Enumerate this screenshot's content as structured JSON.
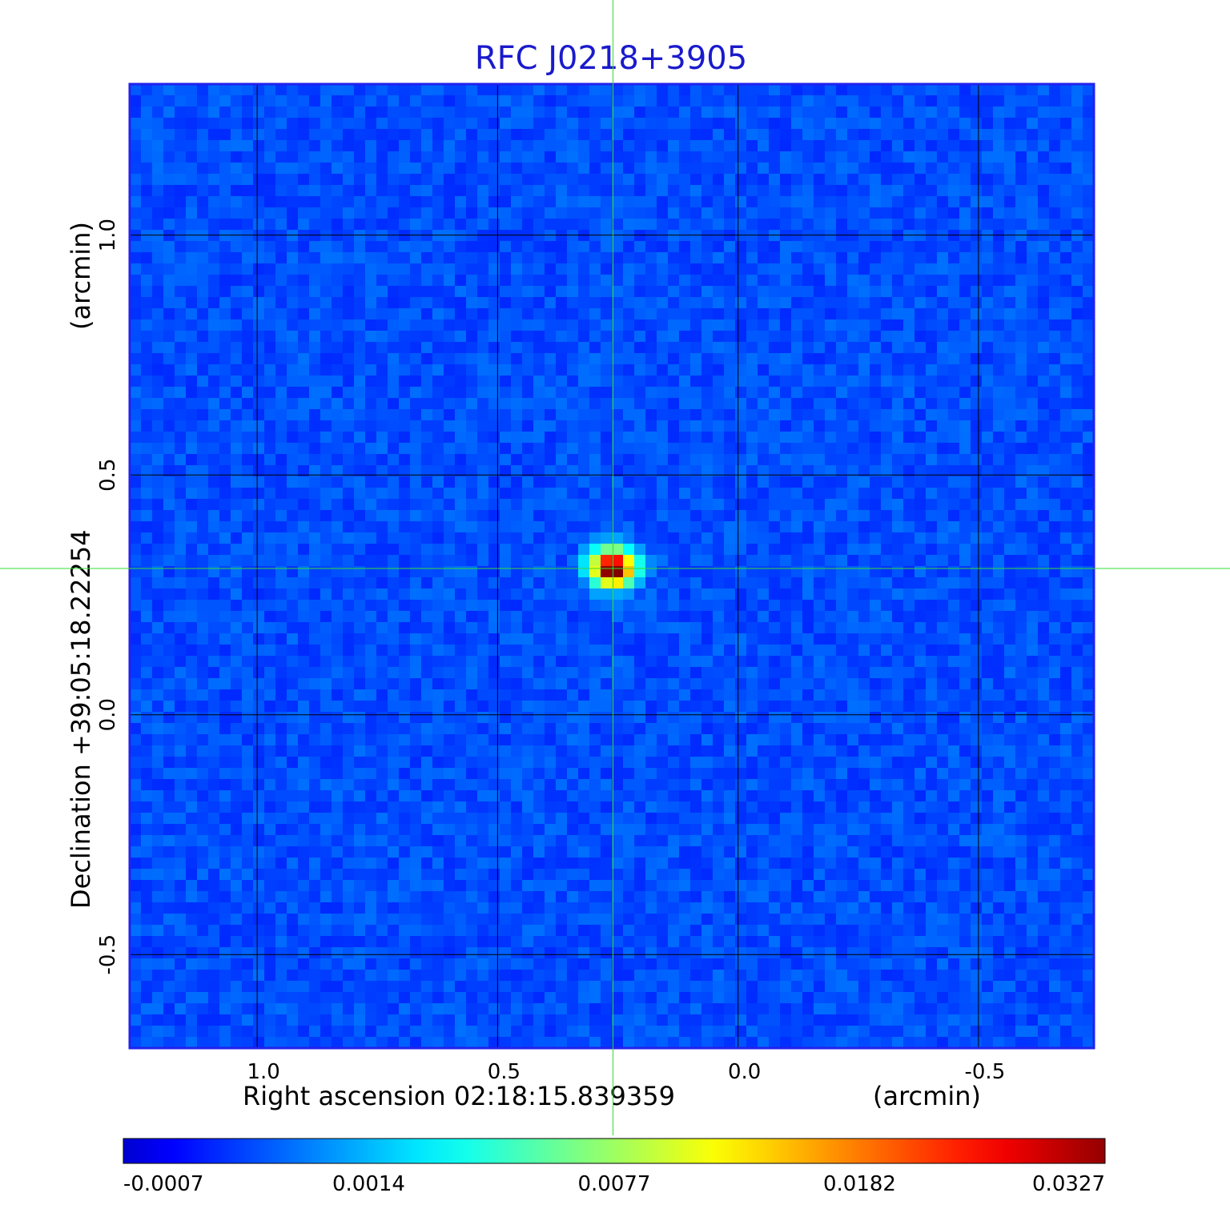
{
  "chart_data": {
    "type": "heatmap",
    "title": "RFC J0218+3905",
    "xlabel": "Right ascension  02:18:15.839359",
    "xlabel_unit": "(arcmin)",
    "ylabel": "Declination  +39:05:18.22254",
    "ylabel_unit": "(arcmin)",
    "x_ticks": [
      {
        "value": 1.0,
        "label": "1.0"
      },
      {
        "value": 0.5,
        "label": "0.5"
      },
      {
        "value": 0.0,
        "label": "0.0"
      },
      {
        "value": -0.5,
        "label": "-0.5"
      }
    ],
    "y_ticks": [
      {
        "value": 1.0,
        "label": "1.0"
      },
      {
        "value": 0.5,
        "label": "0.5"
      },
      {
        "value": 0.0,
        "label": "0.0"
      },
      {
        "value": -0.5,
        "label": "-0.5"
      }
    ],
    "xlim": [
      1.265,
      -0.74
    ],
    "ylim": [
      -0.695,
      1.315
    ],
    "x_reversed": true,
    "grid": true,
    "colormap": "jet",
    "crosshair": {
      "x": 0.26,
      "y": 0.305,
      "color": "#33dd33"
    },
    "source_peak": {
      "x": 0.26,
      "y": 0.305,
      "value": 0.0327
    },
    "background_level": -0.0004,
    "colorbar": {
      "orientation": "horizontal",
      "tick_labels": [
        "-0.0007",
        "0.0014",
        "0.0077",
        "0.0182",
        "0.0327"
      ],
      "tick_values": [
        -0.0007,
        0.0014,
        0.0077,
        0.0182,
        0.0327
      ]
    },
    "colors": {
      "title": "#1a1acc",
      "frame": "#2222ee",
      "grid": "#000000",
      "text": "#000000"
    }
  }
}
